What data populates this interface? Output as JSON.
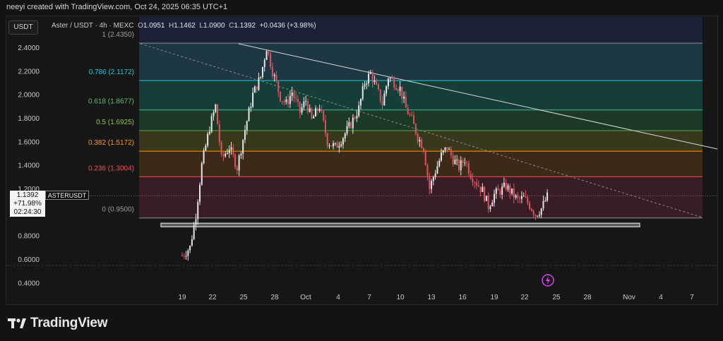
{
  "header": {
    "attribution": "neeyi created with TradingView.com, Oct 24, 2025 06:35 UTC+1"
  },
  "toolbar": {
    "currency_button": "USDT"
  },
  "legend": {
    "symbol": "Aster / USDT · 4h · MEXC",
    "o_label": "O",
    "o": "1.0951",
    "h_label": "H",
    "h": "1.1462",
    "l_label": "L",
    "l": "1.0900",
    "c_label": "C",
    "c": "1.1392",
    "change": "+0.0436 (+3.98%)"
  },
  "price_label": {
    "price": "1.1392",
    "change": "+71.98%",
    "countdown": "02:24:30",
    "symbol": "ASTERUSDT"
  },
  "brand": {
    "name": "TradingView"
  },
  "colors": {
    "bull": "#e6e6e6",
    "bear": "#e0525e",
    "fib_0236": "#ef5350",
    "fib_0382": "#ff9800",
    "fib_05": "#4caf50",
    "fib_0618": "#66bb6a",
    "fib_0786": "#26c6da",
    "fib_1": "#787b86",
    "accent": "#e040fb"
  },
  "chart_data": {
    "type": "candlestick",
    "x_ticks": [
      "19",
      "22",
      "25",
      "28",
      "Oct",
      "4",
      "7",
      "10",
      "13",
      "16",
      "19",
      "22",
      "25",
      "28",
      "Nov",
      "4",
      "7"
    ],
    "y_ticks": [
      "2.4000",
      "2.2000",
      "2.0000",
      "1.8000",
      "1.6000",
      "1.4000",
      "1.2000",
      "0.8000",
      "0.6000",
      "0.4000"
    ],
    "ylim": [
      0.32,
      2.58
    ],
    "fib_levels": [
      {
        "ratio": 1,
        "price": 2.435,
        "label": "1 (2.4350)"
      },
      {
        "ratio": 0.786,
        "price": 2.1172,
        "label": "0.786 (2.1172)"
      },
      {
        "ratio": 0.618,
        "price": 1.8677,
        "label": "0.618 (1.8677)"
      },
      {
        "ratio": 0.5,
        "price": 1.6925,
        "label": "0.5 (1.6925)"
      },
      {
        "ratio": 0.382,
        "price": 1.5172,
        "label": "0.382 (1.5172)"
      },
      {
        "ratio": 0.236,
        "price": 1.3004,
        "label": "0.236 (1.3004)"
      },
      {
        "ratio": 0,
        "price": 0.95,
        "label": "0 (0.9500)"
      }
    ],
    "support_zone": {
      "top": 0.905,
      "bottom": 0.875
    },
    "last_price": 1.1392,
    "price_path": [
      [
        0,
        0.63
      ],
      [
        4,
        0.7
      ],
      [
        7,
        0.98
      ],
      [
        10,
        1.4
      ],
      [
        14,
        1.72
      ],
      [
        17,
        1.9
      ],
      [
        20,
        1.45
      ],
      [
        24,
        1.55
      ],
      [
        28,
        1.38
      ],
      [
        32,
        1.7
      ],
      [
        36,
        2.0
      ],
      [
        40,
        2.15
      ],
      [
        43,
        2.4
      ],
      [
        46,
        2.2
      ],
      [
        50,
        1.98
      ],
      [
        53,
        1.92
      ],
      [
        56,
        2.02
      ],
      [
        60,
        1.85
      ],
      [
        63,
        1.95
      ],
      [
        66,
        1.78
      ],
      [
        70,
        1.9
      ],
      [
        74,
        1.6
      ],
      [
        78,
        1.55
      ],
      [
        82,
        1.64
      ],
      [
        86,
        1.75
      ],
      [
        90,
        1.88
      ],
      [
        93,
        2.1
      ],
      [
        96,
        2.18
      ],
      [
        99,
        2.05
      ],
      [
        102,
        1.92
      ],
      [
        105,
        2.15
      ],
      [
        108,
        2.1
      ],
      [
        111,
        2.05
      ],
      [
        114,
        1.88
      ],
      [
        117,
        1.78
      ],
      [
        120,
        1.64
      ],
      [
        123,
        1.55
      ],
      [
        126,
        1.2
      ],
      [
        129,
        1.35
      ],
      [
        132,
        1.48
      ],
      [
        135,
        1.55
      ],
      [
        138,
        1.45
      ],
      [
        141,
        1.38
      ],
      [
        144,
        1.45
      ],
      [
        147,
        1.32
      ],
      [
        150,
        1.25
      ],
      [
        153,
        1.18
      ],
      [
        156,
        1.05
      ],
      [
        159,
        1.15
      ],
      [
        162,
        1.18
      ],
      [
        165,
        1.22
      ],
      [
        168,
        1.16
      ],
      [
        171,
        1.1
      ],
      [
        174,
        1.12
      ],
      [
        177,
        1.06
      ],
      [
        180,
        0.98
      ],
      [
        183,
        1.03
      ],
      [
        186,
        1.13
      ]
    ]
  }
}
